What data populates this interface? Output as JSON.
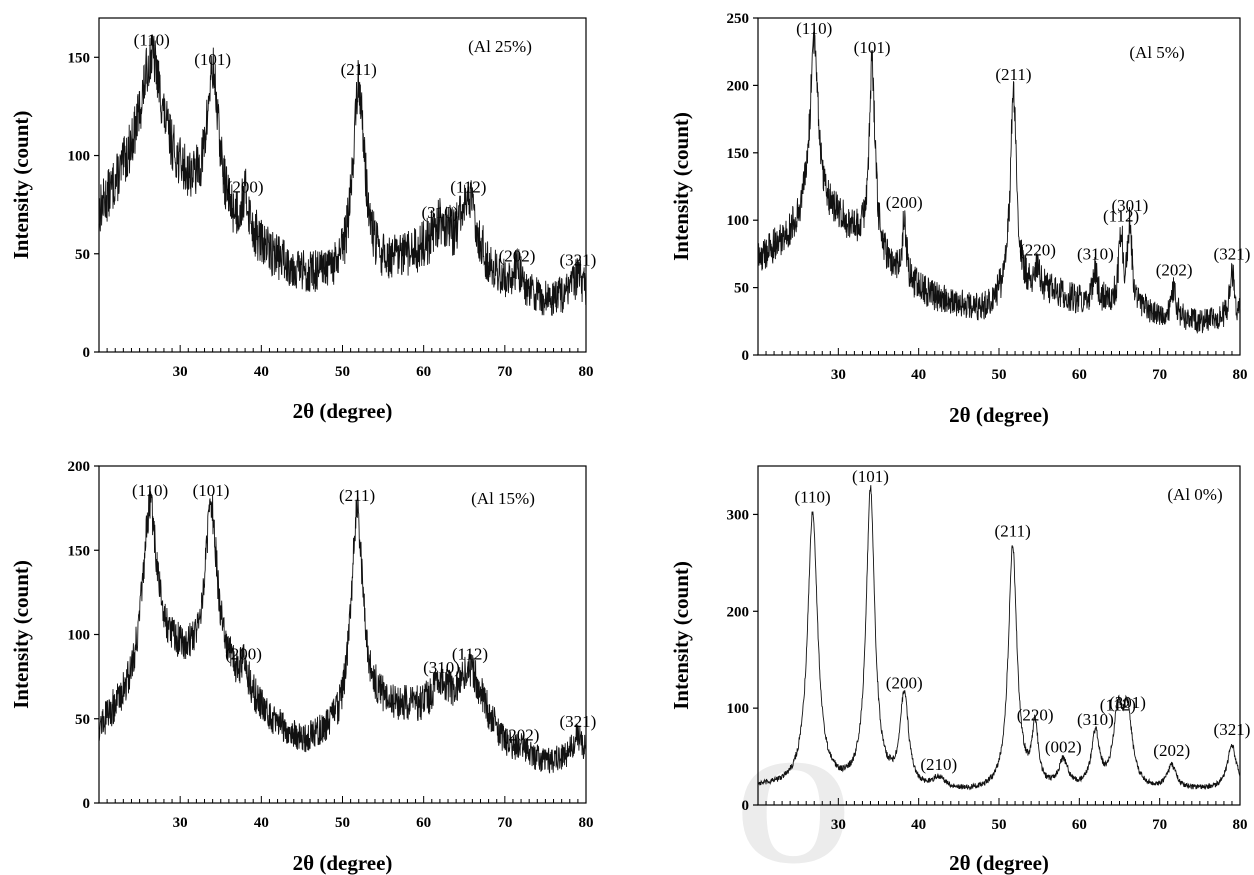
{
  "chart_data": [
    {
      "type": "line",
      "title": "",
      "annotation": "(Al 25%)",
      "xlabel": "2θ (degree)",
      "ylabel": "Intensity (count)",
      "xlim": [
        20,
        80
      ],
      "ylim": [
        0,
        170
      ],
      "x_ticks": [
        30,
        40,
        50,
        60,
        70,
        80
      ],
      "y_ticks": [
        0,
        50,
        100,
        150
      ],
      "grid": false,
      "baseline": [
        [
          20,
          68
        ],
        [
          26,
          105
        ],
        [
          30,
          85
        ],
        [
          36,
          62
        ],
        [
          40,
          50
        ],
        [
          45,
          38
        ],
        [
          50,
          34
        ],
        [
          55,
          40
        ],
        [
          60,
          48
        ],
        [
          65,
          43
        ],
        [
          70,
          32
        ],
        [
          75,
          25
        ],
        [
          80,
          30
        ]
      ],
      "noise": 13,
      "peaks": [
        {
          "label": "(110)",
          "x": 26.5,
          "y": 150,
          "width": 1.4
        },
        {
          "label": "(101)",
          "x": 34.0,
          "y": 140,
          "width": 0.9
        },
        {
          "label": "(200)",
          "x": 38.0,
          "y": 75,
          "width": 0.6
        },
        {
          "label": "(211)",
          "x": 52.0,
          "y": 135,
          "width": 0.9
        },
        {
          "label": "(310)",
          "x": 62.0,
          "y": 62,
          "width": 1.3
        },
        {
          "label": "(112)",
          "x": 65.5,
          "y": 75,
          "width": 1.3
        },
        {
          "label": "(202)",
          "x": 71.5,
          "y": 40,
          "width": 0.6
        },
        {
          "label": "(321)",
          "x": 79.0,
          "y": 38,
          "width": 0.6
        }
      ]
    },
    {
      "type": "line",
      "title": "",
      "annotation": "(Al 5%)",
      "xlabel": "2θ (degree)",
      "ylabel": "Intensity (count)",
      "xlim": [
        20,
        80
      ],
      "ylim": [
        0,
        250
      ],
      "x_ticks": [
        30,
        40,
        50,
        60,
        70,
        80
      ],
      "y_ticks": [
        0,
        50,
        100,
        150,
        200,
        250
      ],
      "grid": false,
      "baseline": [
        [
          20,
          70
        ],
        [
          24,
          88
        ],
        [
          27,
          110
        ],
        [
          30,
          100
        ],
        [
          34,
          78
        ],
        [
          38,
          55
        ],
        [
          42,
          42
        ],
        [
          48,
          33
        ],
        [
          52,
          50
        ],
        [
          56,
          48
        ],
        [
          60,
          40
        ],
        [
          65,
          40
        ],
        [
          70,
          30
        ],
        [
          75,
          24
        ],
        [
          80,
          28
        ]
      ],
      "noise": 13,
      "peaks": [
        {
          "label": "(110)",
          "x": 27.0,
          "y": 235,
          "width": 0.6
        },
        {
          "label": "(101)",
          "x": 34.2,
          "y": 215,
          "width": 0.45
        },
        {
          "label": "(200)",
          "x": 38.2,
          "y": 100,
          "width": 0.3
        },
        {
          "label": "(211)",
          "x": 51.8,
          "y": 195,
          "width": 0.45
        },
        {
          "label": "(220)",
          "x": 54.8,
          "y": 65,
          "width": 0.35
        },
        {
          "label": "(310)",
          "x": 62.0,
          "y": 62,
          "width": 0.3
        },
        {
          "label": "(112)",
          "x": 65.2,
          "y": 90,
          "width": 0.3
        },
        {
          "label": "(301)",
          "x": 66.3,
          "y": 98,
          "width": 0.3
        },
        {
          "label": "(202)",
          "x": 71.8,
          "y": 50,
          "width": 0.3
        },
        {
          "label": "(321)",
          "x": 79.0,
          "y": 62,
          "width": 0.35
        }
      ]
    },
    {
      "type": "line",
      "title": "",
      "annotation": "(Al 15%)",
      "xlabel": "2θ (degree)",
      "ylabel": "Intensity (count)",
      "xlim": [
        20,
        80
      ],
      "ylim": [
        0,
        200
      ],
      "x_ticks": [
        30,
        40,
        50,
        60,
        70,
        80
      ],
      "y_ticks": [
        0,
        50,
        100,
        150,
        200
      ],
      "grid": false,
      "baseline": [
        [
          20,
          42
        ],
        [
          24,
          62
        ],
        [
          27,
          92
        ],
        [
          30,
          85
        ],
        [
          33,
          82
        ],
        [
          36,
          75
        ],
        [
          40,
          52
        ],
        [
          45,
          34
        ],
        [
          50,
          40
        ],
        [
          54,
          55
        ],
        [
          60,
          55
        ],
        [
          66,
          58
        ],
        [
          70,
          32
        ],
        [
          75,
          22
        ],
        [
          80,
          28
        ]
      ],
      "noise": 11,
      "peaks": [
        {
          "label": "(110)",
          "x": 26.3,
          "y": 175,
          "width": 1.0
        },
        {
          "label": "(101)",
          "x": 33.8,
          "y": 175,
          "width": 0.9
        },
        {
          "label": "(200)",
          "x": 37.8,
          "y": 78,
          "width": 0.6
        },
        {
          "label": "(211)",
          "x": 51.8,
          "y": 172,
          "width": 0.9
        },
        {
          "label": "(310)",
          "x": 62.2,
          "y": 70,
          "width": 1.1
        },
        {
          "label": "(112)",
          "x": 65.7,
          "y": 78,
          "width": 1.3
        },
        {
          "label": "(202)",
          "x": 72.0,
          "y": 30,
          "width": 0.7
        },
        {
          "label": "(321)",
          "x": 79.0,
          "y": 38,
          "width": 0.7
        }
      ]
    },
    {
      "type": "line",
      "title": "",
      "annotation": "(Al 0%)",
      "xlabel": "2θ (degree)",
      "ylabel": "Intensity (count)",
      "xlim": [
        20,
        80
      ],
      "ylim": [
        0,
        350
      ],
      "x_ticks": [
        30,
        40,
        50,
        60,
        70,
        80
      ],
      "y_ticks": [
        0,
        100,
        200,
        300
      ],
      "grid": false,
      "baseline": [
        [
          20,
          18
        ],
        [
          30,
          16
        ],
        [
          40,
          12
        ],
        [
          50,
          12
        ],
        [
          60,
          14
        ],
        [
          70,
          14
        ],
        [
          80,
          16
        ]
      ],
      "noise": 4,
      "peaks": [
        {
          "label": "(110)",
          "x": 26.8,
          "y": 300,
          "width": 0.75
        },
        {
          "label": "(101)",
          "x": 34.0,
          "y": 322,
          "width": 0.65
        },
        {
          "label": "(200)",
          "x": 38.2,
          "y": 108,
          "width": 0.65
        },
        {
          "label": "(210)",
          "x": 42.5,
          "y": 24,
          "width": 1.0
        },
        {
          "label": "(211)",
          "x": 51.7,
          "y": 265,
          "width": 0.65
        },
        {
          "label": "(220)",
          "x": 54.5,
          "y": 75,
          "width": 0.45
        },
        {
          "label": "(002)",
          "x": 58.0,
          "y": 42,
          "width": 0.7
        },
        {
          "label": "(310)",
          "x": 62.0,
          "y": 70,
          "width": 0.6
        },
        {
          "label": "(112)",
          "x": 64.8,
          "y": 85,
          "width": 0.7
        },
        {
          "label": "(301)",
          "x": 66.0,
          "y": 88,
          "width": 0.7
        },
        {
          "label": "(202)",
          "x": 71.5,
          "y": 38,
          "width": 0.7
        },
        {
          "label": "(321)",
          "x": 79.0,
          "y": 60,
          "width": 0.7
        }
      ]
    }
  ]
}
